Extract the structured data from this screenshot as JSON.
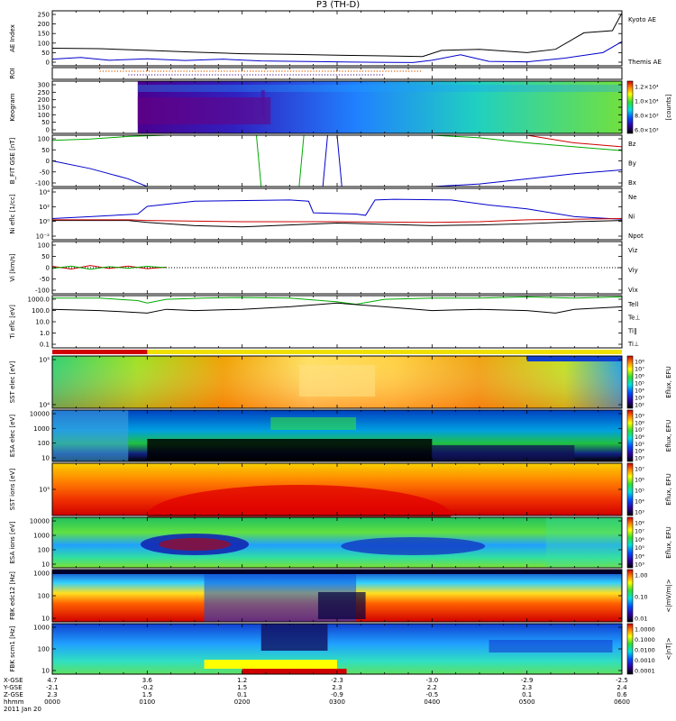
{
  "title": "P3 (TH-D)",
  "chart_data": {
    "type": "stacked-time-series",
    "x_range": [
      0,
      6
    ],
    "x_ticks": {
      "X_GSE": [
        "4.7",
        "3.6",
        "1.2",
        "-2.3",
        "-3.0",
        "-2.9",
        "-2.5"
      ],
      "Y_GSE": [
        "-2.1",
        "-0.2",
        "1.5",
        "2.3",
        "2.2",
        "2.3",
        "2.4"
      ],
      "Z_GSE": [
        "2.3",
        "1.5",
        "0.1",
        "-0.9",
        "-0.5",
        "0.1",
        "0.6"
      ],
      "hhmm": [
        "0000",
        "0100",
        "0200",
        "0300",
        "0400",
        "0500",
        "0600"
      ]
    },
    "x_row_labels": [
      "X-GSE",
      "Y-GSE",
      "Z-GSE",
      "hhmm"
    ],
    "date_label": "2011 Jan 20",
    "panels": [
      {
        "id": "ae",
        "ylabel": "AE Index",
        "yticks": [
          "250",
          "200",
          "150",
          "100",
          "50",
          "0"
        ],
        "ylim": [
          0,
          250
        ],
        "legend": [
          {
            "text": "Kyoto AE",
            "color": "#0000cc"
          },
          {
            "text": "Themis AE",
            "color": "#000000"
          }
        ],
        "series": [
          {
            "name": "Kyoto AE",
            "color": "#0000cc",
            "x": [
              0,
              0.3,
              0.6,
              1,
              1.4,
              1.8,
              2.2,
              2.6,
              3,
              3.4,
              3.8,
              4.0,
              4.3,
              4.6,
              5,
              5.4,
              5.8,
              6
            ],
            "y": [
              30,
              38,
              25,
              32,
              24,
              30,
              22,
              20,
              18,
              16,
              15,
              25,
              50,
              20,
              18,
              35,
              60,
              110
            ]
          },
          {
            "name": "Themis AE",
            "color": "#000000",
            "x": [
              0,
              0.5,
              1,
              1.5,
              2,
              2.5,
              3,
              3.5,
              3.9,
              4.1,
              4.5,
              5,
              5.3,
              5.6,
              5.9,
              6
            ],
            "y": [
              80,
              78,
              70,
              62,
              55,
              52,
              48,
              45,
              42,
              70,
              75,
              60,
              75,
              150,
              160,
              240
            ]
          }
        ]
      },
      {
        "id": "roi",
        "ylabel": "ROI"
      },
      {
        "id": "keogram",
        "ylabel": "Keogram",
        "yticks": [
          "300",
          "250",
          "200",
          "150",
          "100",
          "50",
          "0"
        ],
        "ylim": [
          0,
          300
        ],
        "colorbar": {
          "label": "[counts]",
          "ticks": [
            "1.2×10⁴",
            "1.0×10⁴",
            "8.0×10³",
            "6.0×10³"
          ]
        }
      },
      {
        "id": "bfield",
        "ylabel": "B_FIT GSE [nT]",
        "yticks": [
          "100",
          "50",
          "0",
          "-50",
          "-100"
        ],
        "ylim": [
          -100,
          100
        ],
        "legend": [
          {
            "text": "Bz",
            "color": "#cc0000"
          },
          {
            "text": "By",
            "color": "#00aa00"
          },
          {
            "text": "Bx",
            "color": "#0000cc"
          }
        ]
      },
      {
        "id": "density",
        "ylabel": "Ni eflc [1/cc]",
        "yticks": [
          "10⁴",
          "10²",
          "10⁰",
          "10⁻²"
        ],
        "legend": [
          {
            "text": "Ne",
            "color": "#cc0000"
          },
          {
            "text": "Ni",
            "color": "#000000"
          },
          {
            "text": "Npot",
            "color": "#0000cc"
          }
        ]
      },
      {
        "id": "velocity",
        "ylabel": "Vi [km/s]",
        "yticks": [
          "100",
          "50",
          "0",
          "-50",
          "-100"
        ],
        "ylim": [
          -100,
          100
        ],
        "legend": [
          {
            "text": "Viz",
            "color": "#cc0000"
          },
          {
            "text": "Viy",
            "color": "#00aa00"
          },
          {
            "text": "Vix",
            "color": "#0000cc"
          }
        ]
      },
      {
        "id": "temp",
        "ylabel": "Ti eflc [eV]",
        "yticks": [
          "1000.0",
          "100.0",
          "10.0",
          "1.0",
          "0.1"
        ],
        "legend": [
          {
            "text": "Tell",
            "color": "#000000"
          },
          {
            "text": "Te⊥",
            "color": "#cc0000"
          },
          {
            "text": "Ti‖",
            "color": "#00aa00"
          },
          {
            "text": "Ti⊥",
            "color": "#0000cc"
          }
        ]
      },
      {
        "id": "sst_e",
        "ylabel": "SST elec [eV]",
        "yticks": [
          "10⁵",
          "10⁴"
        ],
        "colorbar": {
          "label": "Eflux, EFU",
          "ticks": [
            "10⁸",
            "10⁷",
            "10⁶",
            "10⁵",
            "10⁴",
            "10³",
            "10²"
          ]
        }
      },
      {
        "id": "esa_e",
        "ylabel": "ESA elec [eV]",
        "yticks": [
          "10000",
          "1000",
          "100",
          "10"
        ],
        "colorbar": {
          "label": "Eflux, EFU",
          "ticks": [
            "10⁹",
            "10⁸",
            "10⁷",
            "10⁶",
            "10⁵",
            "10⁴",
            "10³"
          ]
        }
      },
      {
        "id": "sst_i",
        "ylabel": "SST ions [eV]",
        "yticks": [
          "10⁵"
        ],
        "colorbar": {
          "label": "Eflux, EFU",
          "ticks": [
            "10⁷",
            "10⁶",
            "10⁵",
            "10⁴",
            "10³"
          ]
        }
      },
      {
        "id": "esa_i",
        "ylabel": "ESA ions [eV]",
        "yticks": [
          "10000",
          "1000",
          "100",
          "10"
        ],
        "colorbar": {
          "label": "Eflux, EFU",
          "ticks": [
            "10⁸",
            "10⁷",
            "10⁶",
            "10⁵",
            "10⁴",
            "10³"
          ]
        }
      },
      {
        "id": "fbk_e",
        "ylabel": "FBK edc12 [Hz]",
        "yticks": [
          "1000",
          "100",
          "10"
        ],
        "colorbar": {
          "label": "<|mV/m|>",
          "ticks": [
            "1.00",
            "0.10",
            "0.01"
          ]
        }
      },
      {
        "id": "fbk_b",
        "ylabel": "FBK scm1 [Hz]",
        "yticks": [
          "1000",
          "100",
          "10"
        ],
        "colorbar": {
          "label": "<|nT|>",
          "ticks": [
            "1.0000",
            "0.1000",
            "0.0100",
            "0.0010",
            "0.0001"
          ]
        }
      }
    ]
  }
}
